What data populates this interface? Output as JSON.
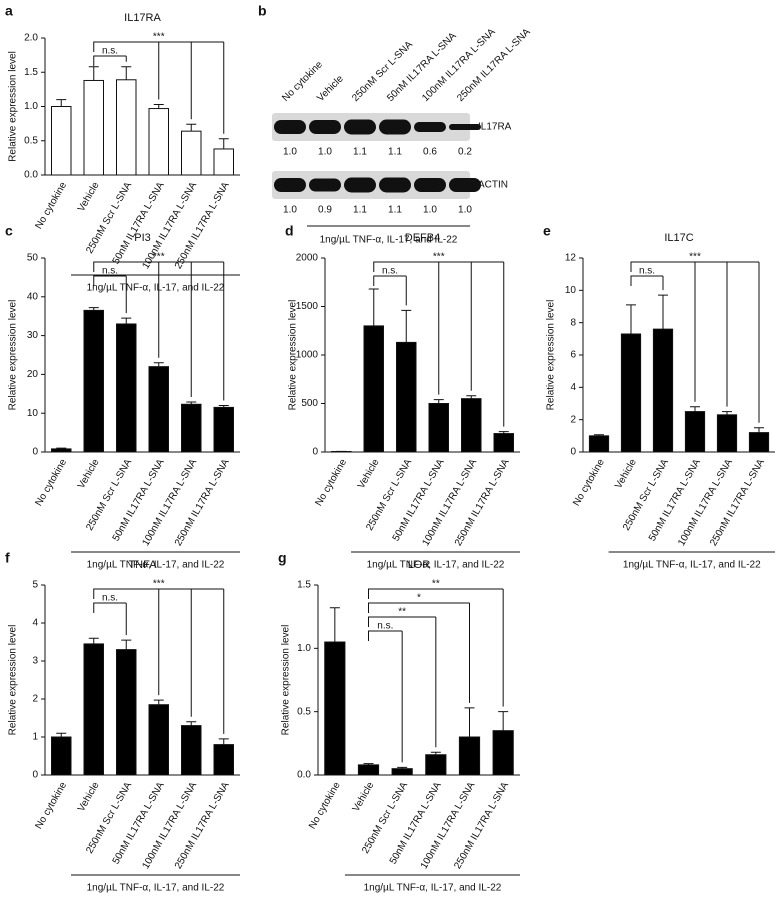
{
  "chart_data": [
    {
      "type": "bar",
      "panel": "a",
      "title": "IL17RA",
      "ylabel": "Relative expression level",
      "categories": [
        "No cytokine",
        "Vehicle",
        "250nM Scr L-SNA",
        "50nM IL17RA L-SNA",
        "100nM IL17RA L-SNA",
        "250nM IL17RA L-SNA"
      ],
      "values": [
        1.0,
        1.38,
        1.39,
        0.97,
        0.64,
        0.38
      ],
      "errors": [
        0.1,
        0.2,
        0.19,
        0.06,
        0.1,
        0.15
      ],
      "color": "#ffffff",
      "ylim": [
        0,
        2.0
      ],
      "yticks": [
        {
          "value": 0,
          "label": "0.0"
        },
        {
          "value": 0.5,
          "label": "0.5"
        },
        {
          "value": 1.0,
          "label": "1.0"
        },
        {
          "value": 1.5,
          "label": "1.5"
        },
        {
          "value": 2.0,
          "label": "2.0"
        }
      ],
      "annotations": [
        {
          "text": "n.s.",
          "from": 1,
          "to": [
            2
          ]
        },
        {
          "text": "***",
          "from": 1,
          "to": [
            3,
            4,
            5
          ]
        }
      ],
      "group_label": "1ng/µL TNF-α, IL-17, and IL-22"
    },
    {
      "type": "blot",
      "panel": "b",
      "lanes": [
        "No cytokine",
        "Vehicle",
        "250nM Scr L-SNA",
        "50nM IL17RA L-SNA",
        "100nM IL17RA L-SNA",
        "250nM IL17RA L-SNA"
      ],
      "bands": [
        {
          "name": "IL17RA",
          "values": [
            1.0,
            1.0,
            1.1,
            1.1,
            0.6,
            0.2
          ],
          "value_labels": [
            "1.0",
            "1.0",
            "1.1",
            "1.1",
            "0.6",
            "0.2"
          ]
        },
        {
          "name": "ACTIN",
          "values": [
            1.0,
            0.9,
            1.1,
            1.1,
            1.0,
            1.0
          ],
          "value_labels": [
            "1.0",
            "0.9",
            "1.1",
            "1.1",
            "1.0",
            "1.0"
          ]
        }
      ],
      "group_label": "1ng/µL TNF-α, IL-17, and IL-22"
    },
    {
      "type": "bar",
      "panel": "c",
      "title": "PI3",
      "ylabel": "Relative expression level",
      "categories": [
        "No cytokine",
        "Vehicle",
        "250nM Scr L-SNA",
        "50nM IL17RA L-SNA",
        "100nM IL17RA L-SNA",
        "250nM IL17RA L-SNA"
      ],
      "values": [
        0.8,
        36.5,
        33,
        22,
        12.3,
        11.5
      ],
      "errors": [
        0.2,
        0.7,
        1.5,
        1,
        0.6,
        0.5
      ],
      "color": "#000000",
      "ylim": [
        0,
        50
      ],
      "yticks": [
        0,
        10,
        20,
        30,
        40,
        50
      ],
      "annotations": [
        {
          "text": "n.s.",
          "from": 1,
          "to": [
            2
          ]
        },
        {
          "text": "***",
          "from": 1,
          "to": [
            3,
            4,
            5
          ]
        }
      ],
      "group_label": "1ng/µL TNF-α, IL-17, and IL-22"
    },
    {
      "type": "bar",
      "panel": "d",
      "title": "DEFB4",
      "ylabel": "Relative expression level",
      "categories": [
        "No cytokine",
        "Vehicle",
        "250nM Scr L-SNA",
        "50nM IL17RA L-SNA",
        "100nM IL17RA L-SNA",
        "250nM IL17RA L-SNA"
      ],
      "values": [
        5,
        1300,
        1130,
        500,
        550,
        190
      ],
      "errors": [
        2,
        380,
        330,
        40,
        30,
        20
      ],
      "color": "#000000",
      "ylim": [
        0,
        2000
      ],
      "yticks": [
        0,
        500,
        1000,
        1500,
        2000
      ],
      "annotations": [
        {
          "text": "n.s.",
          "from": 1,
          "to": [
            2
          ]
        },
        {
          "text": "***",
          "from": 1,
          "to": [
            3,
            4,
            5
          ]
        }
      ],
      "group_label": "1ng/µL TNF-α, IL-17, and IL-22"
    },
    {
      "type": "bar",
      "panel": "e",
      "title": "IL17C",
      "ylabel": "Relative expression level",
      "categories": [
        "No cytokine",
        "Vehicle",
        "250nM Scr L-SNA",
        "50nM IL17RA L-SNA",
        "100nM IL17RA L-SNA",
        "250nM IL17RA L-SNA"
      ],
      "values": [
        1.0,
        7.3,
        7.6,
        2.5,
        2.3,
        1.2
      ],
      "errors": [
        0.07,
        1.8,
        2.1,
        0.3,
        0.2,
        0.3
      ],
      "color": "#000000",
      "ylim": [
        0,
        12
      ],
      "yticks": [
        0,
        2,
        4,
        6,
        8,
        10,
        12
      ],
      "annotations": [
        {
          "text": "n.s.",
          "from": 1,
          "to": [
            2
          ]
        },
        {
          "text": "***",
          "from": 1,
          "to": [
            3,
            4,
            5
          ]
        }
      ],
      "group_label": "1ng/µL TNF-α, IL-17, and IL-22"
    },
    {
      "type": "bar",
      "panel": "f",
      "title": "TNFA",
      "ylabel": "Relative expression level",
      "categories": [
        "No cytokine",
        "Vehicle",
        "250nM Scr L-SNA",
        "50nM IL17RA L-SNA",
        "100nM IL17RA L-SNA",
        "250nM IL17RA L-SNA"
      ],
      "values": [
        1.0,
        3.45,
        3.3,
        1.85,
        1.3,
        0.8
      ],
      "errors": [
        0.1,
        0.15,
        0.25,
        0.12,
        0.1,
        0.15
      ],
      "color": "#000000",
      "ylim": [
        0,
        5
      ],
      "yticks": [
        0,
        1,
        2,
        3,
        4,
        5
      ],
      "annotations": [
        {
          "text": "n.s.",
          "from": 1,
          "to": [
            2
          ]
        },
        {
          "text": "***",
          "from": 1,
          "to": [
            3,
            4,
            5
          ]
        }
      ],
      "group_label": "1ng/µL TNF-α, IL-17, and IL-22"
    },
    {
      "type": "bar",
      "panel": "g",
      "title": "LOR",
      "ylabel": "Relative expression level",
      "categories": [
        "No cytokine",
        "Vehicle",
        "250nM Scr L-SNA",
        "50nM IL17RA L-SNA",
        "100nM IL17RA L-SNA",
        "250nM IL17RA L-SNA"
      ],
      "values": [
        1.05,
        0.08,
        0.05,
        0.16,
        0.3,
        0.35
      ],
      "errors": [
        0.27,
        0.01,
        0.01,
        0.02,
        0.23,
        0.15
      ],
      "color": "#000000",
      "ylim": [
        0,
        1.5
      ],
      "yticks": [
        {
          "value": 0,
          "label": "0.0"
        },
        {
          "value": 0.5,
          "label": "0.5"
        },
        {
          "value": 1.0,
          "label": "1.0"
        },
        {
          "value": 1.5,
          "label": "1.5"
        }
      ],
      "annotations": [
        {
          "text": "n.s.",
          "from": 1,
          "to": [
            2
          ]
        },
        {
          "text": "**",
          "from": 1,
          "to": [
            3
          ]
        },
        {
          "text": "*",
          "from": 1,
          "to": [
            4
          ]
        },
        {
          "text": "**",
          "from": 1,
          "to": [
            5
          ]
        }
      ],
      "group_label": "1ng/µL TNF-α, IL-17, and IL-22"
    }
  ]
}
